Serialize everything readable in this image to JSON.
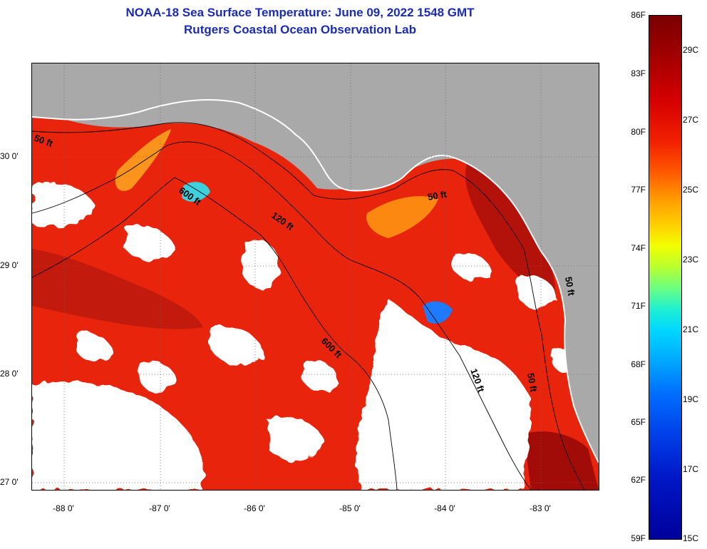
{
  "title": "NOAA-18 Sea Surface Temperature:  June 09, 2022 1548 GMT",
  "subtitle": "Rutgers Coastal Ocean Observation Lab",
  "longitude_labels": [
    "-88 0'",
    "-87 0'",
    "-86 0'",
    "-85 0'",
    "-84 0'",
    "-83 0'"
  ],
  "latitude_labels": [
    "30 0'",
    "29 0'",
    "28 0'",
    "27 0'"
  ],
  "contour_labels": [
    "50 ft",
    "600 ft",
    "120 ft",
    "50 ft",
    "600 ft",
    "120 ft",
    "50 ft",
    "50 ft"
  ],
  "colorbar": {
    "fahrenheit_labels": [
      "86F",
      "83F",
      "80F",
      "77F",
      "74F",
      "71F",
      "68F",
      "65F",
      "62F",
      "59F"
    ],
    "celsius_labels": [
      "29C",
      "27C",
      "25C",
      "23C",
      "21C",
      "19C",
      "17C",
      "15C"
    ]
  },
  "colors": {
    "title": "#1a2bb5",
    "land": "#a9a9a9",
    "cloud": "#ffffff",
    "warm_sst": "#e8200a",
    "hot_sst": "#a10c08"
  }
}
